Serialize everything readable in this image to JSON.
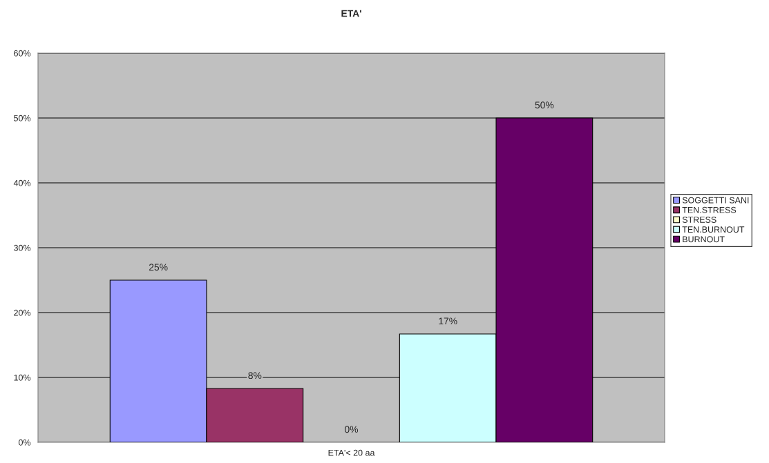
{
  "chart_data": {
    "type": "bar",
    "title": "ETA'",
    "categories": [
      "ETA'< 20 aa"
    ],
    "series": [
      {
        "name": "SOGGETTI SANI",
        "color": "#9999ff",
        "values": [
          25
        ],
        "value_labels": [
          "25%"
        ]
      },
      {
        "name": "TEN.STRESS",
        "color": "#993366",
        "values": [
          8.3
        ],
        "value_labels": [
          "8%"
        ]
      },
      {
        "name": "STRESS",
        "color": "#ffffcc",
        "values": [
          0
        ],
        "value_labels": [
          "0%"
        ]
      },
      {
        "name": "TEN.BURNOUT",
        "color": "#ccffff",
        "values": [
          16.7
        ],
        "value_labels": [
          "17%"
        ]
      },
      {
        "name": "BURNOUT",
        "color": "#660066",
        "values": [
          50
        ],
        "value_labels": [
          "50%"
        ]
      }
    ],
    "ylim": [
      0,
      60
    ],
    "yticks": [
      {
        "value": 0,
        "label": "0%"
      },
      {
        "value": 10,
        "label": "10%"
      },
      {
        "value": 20,
        "label": "20%"
      },
      {
        "value": 30,
        "label": "30%"
      },
      {
        "value": 40,
        "label": "40%"
      },
      {
        "value": 50,
        "label": "50%"
      },
      {
        "value": 60,
        "label": "60%"
      }
    ],
    "grid": "y",
    "legend": "right"
  }
}
